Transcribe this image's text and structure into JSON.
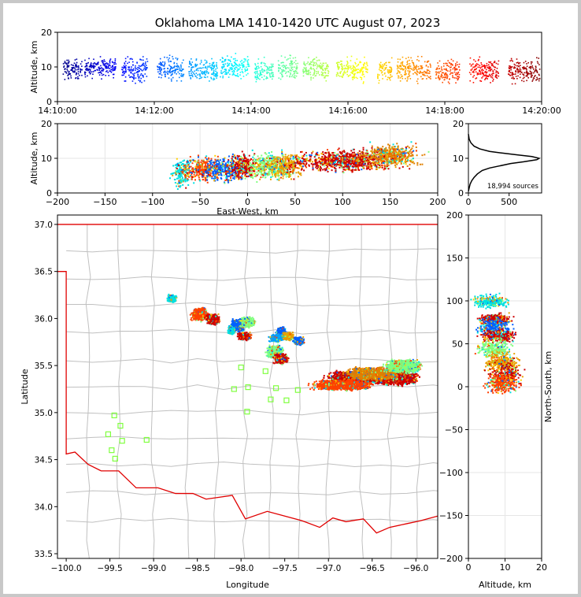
{
  "figure": {
    "title": "Oklahoma LMA 1410-1420 UTC August 07, 2023",
    "source_count_label": "18,994 sources"
  },
  "chart_data": [
    {
      "id": "time_height",
      "type": "scatter",
      "xlabel": "",
      "ylabel": "Altitude, km",
      "xlim": [
        "14:10:00",
        "14:20:00"
      ],
      "ylim": [
        0,
        20
      ],
      "xticks": [
        "14:10:00",
        "14:12:00",
        "14:14:00",
        "14:16:00",
        "14:18:00",
        "14:20:00"
      ],
      "yticks": [
        0,
        10,
        20
      ],
      "color_encoding": "time (jet colormap)",
      "clusters": [
        {
          "t0": 0.1,
          "t1": 0.5,
          "alt": 9.5,
          "spread": 2.5
        },
        {
          "t0": 0.55,
          "t1": 1.2,
          "alt": 10,
          "spread": 2.5
        },
        {
          "t0": 1.3,
          "t1": 1.85,
          "alt": 9.5,
          "spread": 3
        },
        {
          "t0": 2.05,
          "t1": 2.6,
          "alt": 9.5,
          "spread": 3
        },
        {
          "t0": 2.7,
          "t1": 3.3,
          "alt": 9,
          "spread": 3
        },
        {
          "t0": 3.35,
          "t1": 3.95,
          "alt": 10,
          "spread": 3
        },
        {
          "t0": 4.05,
          "t1": 4.45,
          "alt": 9,
          "spread": 3
        },
        {
          "t0": 4.55,
          "t1": 4.95,
          "alt": 10,
          "spread": 3
        },
        {
          "t0": 5.05,
          "t1": 5.6,
          "alt": 9.5,
          "spread": 3
        },
        {
          "t0": 5.75,
          "t1": 6.4,
          "alt": 9.5,
          "spread": 3
        },
        {
          "t0": 6.6,
          "t1": 6.9,
          "alt": 9,
          "spread": 3
        },
        {
          "t0": 7.0,
          "t1": 7.7,
          "alt": 9.5,
          "spread": 3
        },
        {
          "t0": 7.8,
          "t1": 8.3,
          "alt": 9,
          "spread": 3
        },
        {
          "t0": 8.5,
          "t1": 9.1,
          "alt": 9,
          "spread": 3
        },
        {
          "t0": 9.3,
          "t1": 9.95,
          "alt": 9,
          "spread": 3
        }
      ]
    },
    {
      "id": "east_west_altitude",
      "type": "scatter",
      "xlabel": "East-West, km",
      "ylabel": "Altitude, km",
      "xlim": [
        -200,
        200
      ],
      "ylim": [
        0,
        20
      ],
      "xticks": [
        -200,
        -150,
        -100,
        -50,
        0,
        50,
        100,
        150,
        200
      ],
      "yticks": [
        0,
        10,
        20
      ],
      "clusters": [
        {
          "x": -70,
          "width": 12,
          "alt": 6,
          "spread": 4,
          "color": "#00e0e0"
        },
        {
          "x": -48,
          "width": 22,
          "alt": 7,
          "spread": 3.5,
          "color": "#ff4000"
        },
        {
          "x": -25,
          "width": 25,
          "alt": 7,
          "spread": 3.5,
          "color": "#0060ff"
        },
        {
          "x": -5,
          "width": 18,
          "alt": 8,
          "spread": 3.5,
          "color": "#cc0000"
        },
        {
          "x": 20,
          "width": 25,
          "alt": 8,
          "spread": 3.5,
          "color": "#80ff80"
        },
        {
          "x": 40,
          "width": 22,
          "alt": 8,
          "spread": 3.5,
          "color": "#e8a000"
        },
        {
          "x": 100,
          "width": 60,
          "alt": 9.5,
          "spread": 3,
          "color": "#cc0000"
        },
        {
          "x": 150,
          "width": 35,
          "alt": 11,
          "spread": 3,
          "color": "#e08000"
        }
      ]
    },
    {
      "id": "altitude_histogram",
      "type": "line",
      "xlabel": "",
      "ylabel": "",
      "xlim": [
        0,
        900
      ],
      "ylim": [
        0,
        20
      ],
      "xticks": [
        0,
        500
      ],
      "yticks": [
        0,
        10,
        20
      ],
      "x": [
        0,
        10,
        20,
        40,
        70,
        110,
        170,
        260,
        380,
        520,
        680,
        840,
        870,
        780,
        600,
        420,
        260,
        140,
        70,
        30,
        10,
        0
      ],
      "y": [
        0.5,
        1.5,
        2.5,
        3.5,
        4.5,
        5.5,
        6.5,
        7.2,
        7.8,
        8.5,
        9.0,
        9.6,
        10.0,
        10.5,
        11.0,
        11.5,
        12.0,
        12.7,
        13.5,
        14.5,
        15.5,
        17
      ]
    },
    {
      "id": "plan_view_map",
      "type": "scatter",
      "xlabel": "Longitude",
      "ylabel": "Latitude",
      "xlim": [
        -100.1,
        -95.75
      ],
      "ylim": [
        33.45,
        37.1
      ],
      "xticks": [
        -100.0,
        -99.5,
        -99.0,
        -98.5,
        -98.0,
        -97.5,
        -97.0,
        -96.5,
        -96.0
      ],
      "xtick_labels": [
        "−100.0",
        "−99.5",
        "−99.0",
        "−98.5",
        "−98.0",
        "−97.5",
        "−97.0",
        "−96.5",
        "−96.0"
      ],
      "yticks": [
        33.5,
        34.0,
        34.5,
        35.0,
        35.5,
        36.0,
        36.5,
        37.0
      ],
      "yticks_labels": [
        "33.5",
        "34.0",
        "34.5",
        "35.0",
        "35.5",
        "36.0",
        "36.5",
        "37.0"
      ],
      "stations": [
        [
          -99.45,
          34.97
        ],
        [
          -99.38,
          34.86
        ],
        [
          -99.52,
          34.77
        ],
        [
          -99.36,
          34.7
        ],
        [
          -99.48,
          34.6
        ],
        [
          -99.44,
          34.51
        ],
        [
          -99.08,
          34.71
        ],
        [
          -98.0,
          35.48
        ],
        [
          -98.08,
          35.25
        ],
        [
          -97.92,
          35.27
        ],
        [
          -97.93,
          35.01
        ],
        [
          -97.72,
          35.44
        ],
        [
          -97.6,
          35.26
        ],
        [
          -97.66,
          35.14
        ],
        [
          -97.48,
          35.13
        ],
        [
          -97.35,
          35.24
        ]
      ],
      "clusters": [
        {
          "lon": -98.8,
          "lat": 36.22,
          "dlon": 0.04,
          "dlat": 0.03,
          "color": "#00e0e0"
        },
        {
          "lon": -98.48,
          "lat": 36.05,
          "dlon": 0.07,
          "dlat": 0.05,
          "color": "#ff4000"
        },
        {
          "lon": -98.33,
          "lat": 36.0,
          "dlon": 0.06,
          "dlat": 0.04,
          "color": "#cc0000"
        },
        {
          "lon": -98.05,
          "lat": 35.93,
          "dlon": 0.06,
          "dlat": 0.05,
          "color": "#0060ff"
        },
        {
          "lon": -97.93,
          "lat": 35.97,
          "dlon": 0.06,
          "dlat": 0.04,
          "color": "#80ff80"
        },
        {
          "lon": -97.97,
          "lat": 35.82,
          "dlon": 0.06,
          "dlat": 0.03,
          "color": "#cc0000"
        },
        {
          "lon": -98.12,
          "lat": 35.88,
          "dlon": 0.03,
          "dlat": 0.03,
          "color": "#00e0e0"
        },
        {
          "lon": -97.55,
          "lat": 35.86,
          "dlon": 0.04,
          "dlat": 0.04,
          "color": "#0060ff"
        },
        {
          "lon": -97.6,
          "lat": 35.8,
          "dlon": 0.06,
          "dlat": 0.03,
          "color": "#00a0ff"
        },
        {
          "lon": -97.47,
          "lat": 35.82,
          "dlon": 0.05,
          "dlat": 0.03,
          "color": "#e8a000"
        },
        {
          "lon": -97.62,
          "lat": 35.65,
          "dlon": 0.07,
          "dlat": 0.05,
          "color": "#80ff80"
        },
        {
          "lon": -97.55,
          "lat": 35.58,
          "dlon": 0.06,
          "dlat": 0.04,
          "color": "#cc0000"
        },
        {
          "lon": -97.35,
          "lat": 35.77,
          "dlon": 0.05,
          "dlat": 0.03,
          "color": "#0060ff"
        },
        {
          "lon": -96.72,
          "lat": 35.38,
          "dlon": 0.22,
          "dlat": 0.05,
          "color": "#cc0000"
        },
        {
          "lon": -96.25,
          "lat": 35.38,
          "dlon": 0.2,
          "dlat": 0.06,
          "color": "#cc0000"
        },
        {
          "lon": -96.5,
          "lat": 35.42,
          "dlon": 0.22,
          "dlat": 0.05,
          "color": "#e08000"
        },
        {
          "lon": -96.85,
          "lat": 35.3,
          "dlon": 0.25,
          "dlat": 0.04,
          "color": "#ff4000"
        },
        {
          "lon": -96.15,
          "lat": 35.5,
          "dlon": 0.15,
          "dlat": 0.05,
          "color": "#80ff80"
        }
      ]
    },
    {
      "id": "altitude_north_south",
      "type": "scatter",
      "xlabel": "Altitude, km",
      "ylabel": "North-South, km",
      "xlim": [
        0,
        20
      ],
      "ylim": [
        -200,
        200
      ],
      "xticks": [
        0,
        10,
        20
      ],
      "yticks": [
        -200,
        -150,
        -100,
        -50,
        0,
        50,
        100,
        150,
        200
      ],
      "clusters": [
        {
          "alt": 6,
          "ns": 100,
          "dalt": 4,
          "dns": 6,
          "color": "#00e0e0"
        },
        {
          "alt": 7,
          "ns": 80,
          "dalt": 4,
          "dns": 5,
          "color": "#cc0000"
        },
        {
          "alt": 7,
          "ns": 70,
          "dalt": 4,
          "dns": 8,
          "color": "#0060ff"
        },
        {
          "alt": 8,
          "ns": 60,
          "dalt": 4,
          "dns": 6,
          "color": "#cc0000"
        },
        {
          "alt": 7,
          "ns": 45,
          "dalt": 4,
          "dns": 8,
          "color": "#80ff80"
        },
        {
          "alt": 9,
          "ns": 30,
          "dalt": 4,
          "dns": 8,
          "color": "#e8a000"
        },
        {
          "alt": 10,
          "ns": 15,
          "dalt": 4,
          "dns": 12,
          "color": "#cc0000"
        },
        {
          "alt": 9,
          "ns": 5,
          "dalt": 4,
          "dns": 10,
          "color": "#ff4000"
        }
      ]
    }
  ],
  "colors": {
    "state_border": "#e00000",
    "county_lines": "#c0c0c0",
    "station_marker": "#80ff40",
    "histogram_line": "#000000"
  }
}
